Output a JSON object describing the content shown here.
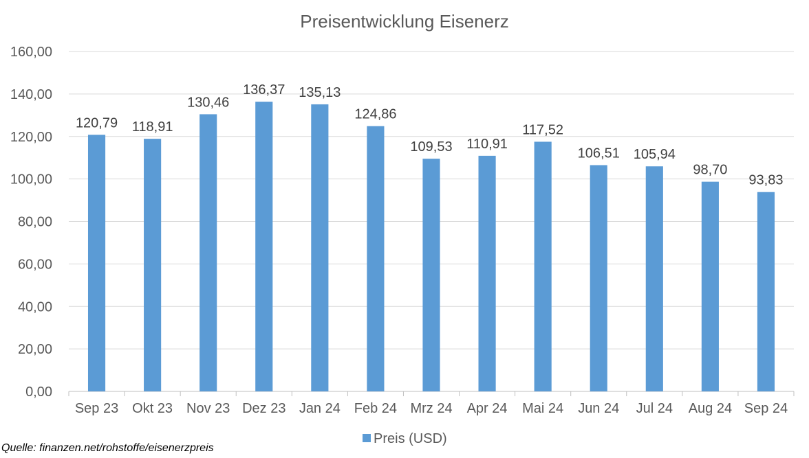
{
  "chart_data": {
    "type": "bar",
    "title": "Preisentwicklung Eisenerz",
    "categories": [
      "Sep 23",
      "Okt 23",
      "Nov 23",
      "Dez 23",
      "Jan 24",
      "Feb 24",
      "Mrz 24",
      "Apr 24",
      "Mai 24",
      "Jun 24",
      "Jul 24",
      "Aug 24",
      "Sep 24"
    ],
    "series": [
      {
        "name": "Preis (USD)",
        "values": [
          120.79,
          118.91,
          130.46,
          136.37,
          135.13,
          124.86,
          109.53,
          110.91,
          117.52,
          106.51,
          105.94,
          98.7,
          93.83
        ],
        "labels": [
          "120,79",
          "118,91",
          "130,46",
          "136,37",
          "135,13",
          "124,86",
          "109,53",
          "110,91",
          "117,52",
          "106,51",
          "105,94",
          "98,70",
          "93,83"
        ],
        "color": "#5b9bd5"
      }
    ],
    "yticks": [
      "0,00",
      "20,00",
      "40,00",
      "60,00",
      "80,00",
      "100,00",
      "120,00",
      "140,00",
      "160,00"
    ],
    "ylim": [
      0,
      160
    ],
    "ystep": 20,
    "grid": true,
    "legend": "bottom-center",
    "gridColor": "#d9d9d9"
  },
  "source": "Quelle: finanzen.net/rohstoffe/eisenerzpreis"
}
